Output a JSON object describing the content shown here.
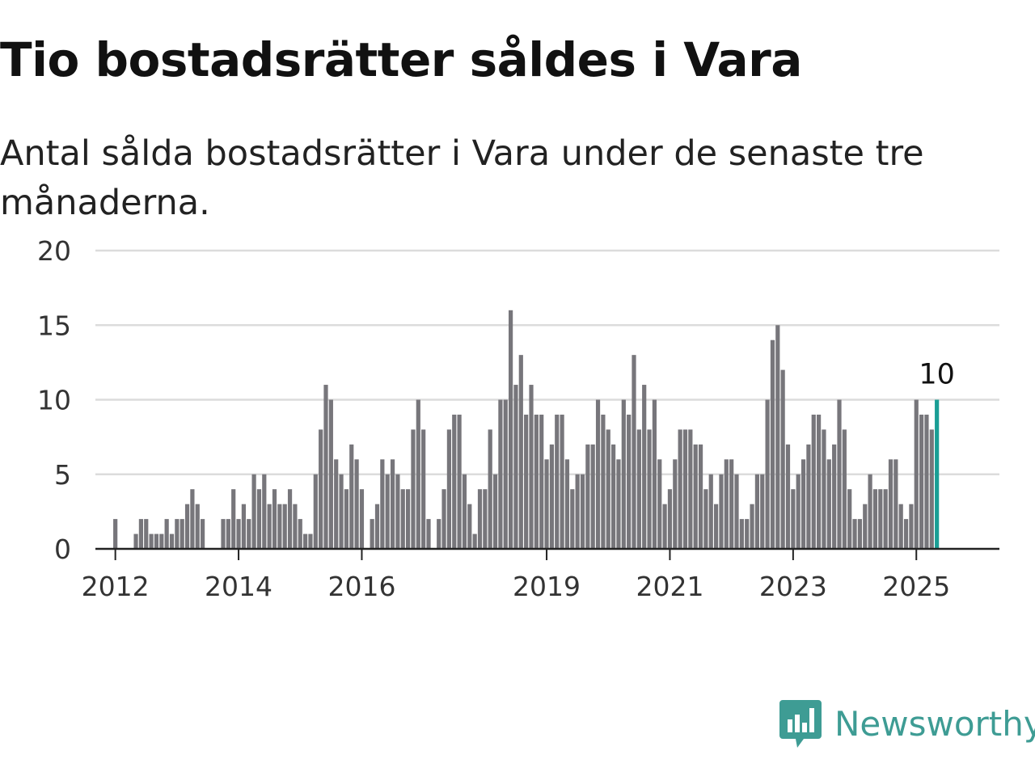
{
  "title": "Tio bostadsrätter såldes i Vara",
  "subtitle": "Antal sålda bostadsrätter i Vara under de senaste tre månaderna.",
  "brand": {
    "name": "Newsworthy",
    "icon": "bar-chart-speech-bubble-icon",
    "color": "#3e9c94"
  },
  "chart_data": {
    "type": "bar",
    "x_axis_ticks": [
      "2012",
      "2014",
      "2016",
      "2019",
      "2021",
      "2023",
      "2025"
    ],
    "y_axis_ticks": [
      0,
      5,
      10,
      15,
      20
    ],
    "ylim": [
      0,
      20
    ],
    "grid": true,
    "bar_color": "#77767b",
    "highlight_color": "#1a9e95",
    "highlight_label": "10",
    "start": "2011-10",
    "values": [
      0,
      0,
      0,
      2,
      0,
      0,
      0,
      1,
      2,
      2,
      1,
      1,
      1,
      2,
      1,
      2,
      2,
      3,
      4,
      3,
      2,
      0,
      0,
      0,
      2,
      2,
      4,
      2,
      3,
      2,
      5,
      4,
      5,
      3,
      4,
      3,
      3,
      4,
      3,
      2,
      1,
      1,
      5,
      8,
      11,
      10,
      6,
      5,
      4,
      7,
      6,
      4,
      0,
      2,
      3,
      6,
      5,
      6,
      5,
      4,
      4,
      8,
      10,
      8,
      2,
      0,
      2,
      4,
      8,
      9,
      9,
      5,
      3,
      1,
      4,
      4,
      8,
      5,
      10,
      10,
      16,
      11,
      13,
      9,
      11,
      9,
      9,
      6,
      7,
      9,
      9,
      6,
      4,
      5,
      5,
      7,
      7,
      10,
      9,
      8,
      7,
      6,
      10,
      9,
      13,
      8,
      11,
      8,
      10,
      6,
      3,
      4,
      6,
      8,
      8,
      8,
      7,
      7,
      4,
      5,
      3,
      5,
      6,
      6,
      5,
      2,
      2,
      3,
      5,
      5,
      10,
      14,
      15,
      12,
      7,
      4,
      5,
      6,
      7,
      9,
      9,
      8,
      6,
      7,
      10,
      8,
      4,
      2,
      2,
      3,
      5,
      4,
      4,
      4,
      6,
      6,
      3,
      2,
      3,
      10,
      9,
      9,
      8,
      10
    ]
  }
}
